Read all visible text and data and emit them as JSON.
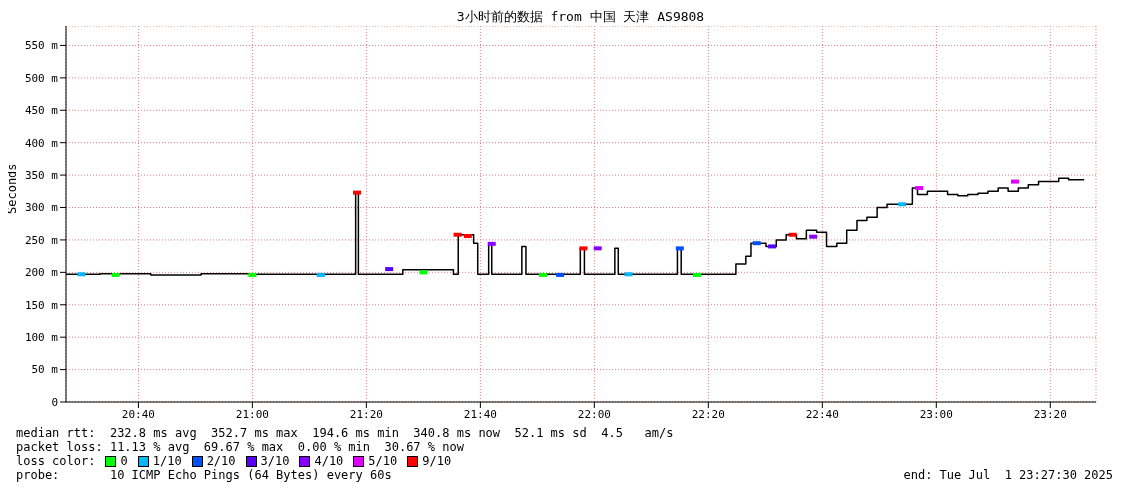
{
  "chart_data": {
    "type": "step",
    "title": "3小时前的数据 from 中国 天津 AS9808",
    "ylabel": "Seconds",
    "xlim": [
      20.455,
      23.467
    ],
    "xticks": [
      {
        "value": 20.6667,
        "label": "20:40"
      },
      {
        "value": 21,
        "label": "21:00"
      },
      {
        "value": 21.3333,
        "label": "21:20"
      },
      {
        "value": 21.6667,
        "label": "21:40"
      },
      {
        "value": 22,
        "label": "22:00"
      },
      {
        "value": 22.3333,
        "label": "22:20"
      },
      {
        "value": 22.6667,
        "label": "22:40"
      },
      {
        "value": 23,
        "label": "23:00"
      },
      {
        "value": 23.3333,
        "label": "23:20"
      }
    ],
    "ylim": [
      0,
      580
    ],
    "yticks": [
      {
        "value": 0,
        "label": "0"
      },
      {
        "value": 50,
        "label": "50 m"
      },
      {
        "value": 100,
        "label": "100 m"
      },
      {
        "value": 150,
        "label": "150 m"
      },
      {
        "value": 200,
        "label": "200 m"
      },
      {
        "value": 250,
        "label": "250 m"
      },
      {
        "value": 300,
        "label": "300 m"
      },
      {
        "value": 350,
        "label": "350 m"
      },
      {
        "value": 400,
        "label": "400 m"
      },
      {
        "value": 450,
        "label": "450 m"
      },
      {
        "value": 500,
        "label": "500 m"
      },
      {
        "value": 550,
        "label": "550 m"
      }
    ],
    "grid": true,
    "line_style": "solid",
    "legend": "bottom",
    "series": [
      {
        "color": "#000000",
        "x": [
          20.455,
          20.555,
          20.703,
          20.85,
          20.998,
          21.145,
          21.293,
          21.302,
          21.31,
          21.44,
          21.588,
          21.602,
          21.647,
          21.659,
          21.691,
          21.7,
          21.788,
          21.8,
          21.959,
          21.971,
          22.06,
          22.07,
          22.243,
          22.254,
          22.325,
          22.414,
          22.443,
          22.458,
          22.502,
          22.532,
          22.561,
          22.591,
          22.62,
          22.65,
          22.679,
          22.709,
          22.738,
          22.768,
          22.797,
          22.827,
          22.856,
          22.886,
          22.915,
          22.93,
          22.945,
          22.974,
          23.004,
          23.033,
          23.063,
          23.092,
          23.122,
          23.151,
          23.181,
          23.21,
          23.24,
          23.269,
          23.299,
          23.328,
          23.358,
          23.387,
          23.431
        ],
        "values": [
          197,
          198,
          196,
          198,
          197,
          197,
          197,
          323,
          197,
          204,
          197,
          258,
          245,
          197,
          245,
          197,
          240,
          197,
          237,
          197,
          237,
          197,
          237,
          197,
          197,
          213,
          225,
          245,
          240,
          250,
          258,
          252,
          265,
          262,
          240,
          245,
          265,
          280,
          285,
          300,
          305,
          305,
          305,
          330,
          320,
          325,
          325,
          320,
          318,
          320,
          322,
          325,
          330,
          325,
          330,
          335,
          340,
          340,
          345,
          343,
          342
        ]
      },
      {
        "type": "scatter",
        "name": "0",
        "color": "#00ff00",
        "x": [
          20.6,
          21.0,
          21.5,
          21.85,
          22.3
        ],
        "values": [
          196,
          196,
          200,
          196,
          196
        ]
      },
      {
        "type": "scatter",
        "name": "1/10",
        "color": "#00b8ff",
        "x": [
          20.5,
          21.2,
          22.1,
          22.9
        ],
        "values": [
          197,
          196,
          197,
          305
        ]
      },
      {
        "type": "scatter",
        "name": "2/10",
        "color": "#0050ff",
        "x": [
          21.9,
          22.25,
          22.475
        ],
        "values": [
          196,
          237,
          245
        ]
      },
      {
        "type": "scatter",
        "name": "3/10",
        "color": "#5500ff",
        "x": [
          21.4,
          22.52
        ],
        "values": [
          205,
          240
        ]
      },
      {
        "type": "scatter",
        "name": "4/10",
        "color": "#8a00ff",
        "x": [
          21.7,
          22.01,
          22.64
        ],
        "values": [
          244,
          237,
          255
        ]
      },
      {
        "type": "scatter",
        "name": "5/10",
        "color": "#e000ff",
        "x": [
          22.95,
          23.23
        ],
        "values": [
          330,
          340
        ]
      },
      {
        "type": "scatter",
        "name": "9/10",
        "color": "#ff0000",
        "x": [
          21.306,
          21.6,
          21.63,
          21.968,
          22.58
        ],
        "values": [
          323,
          258,
          256,
          237,
          258
        ]
      }
    ],
    "annotations": [
      "median rtt:  232.8 ms avg  352.7 ms max  194.6 ms min  340.8 ms now  52.1 ms sd  4.5   am/s",
      "packet loss: 11.13 % avg  69.67 % max  0.00 % min  30.67 % now",
      "loss color:",
      "probe:       10 ICMP Echo Pings (64 Bytes) every 60s",
      "end: Tue Jul  1 23:27:30 2025"
    ]
  }
}
